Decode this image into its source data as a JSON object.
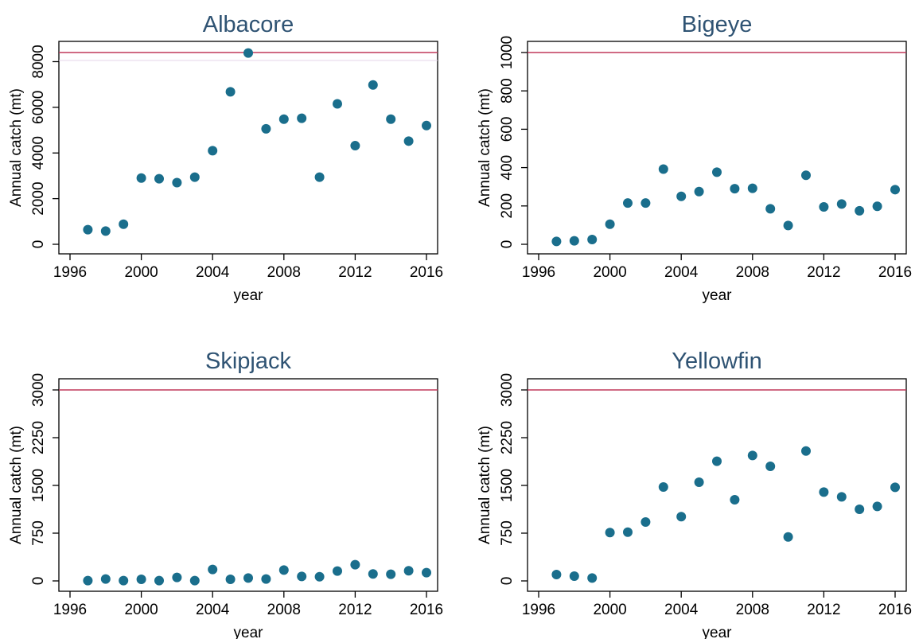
{
  "colors": {
    "marker": "#1a6e8c",
    "reference_line": "#c0395a",
    "title": "#2f5373"
  },
  "chart_data": [
    {
      "type": "scatter",
      "title": "Albacore",
      "xlabel": "year",
      "ylabel": "Annual catch (mt)",
      "xlim": [
        1996,
        2016
      ],
      "ylim": [
        0,
        8400
      ],
      "xticks": [
        1996,
        2000,
        2004,
        2008,
        2012,
        2016
      ],
      "yticks": [
        0,
        2000,
        4000,
        6000,
        8000
      ],
      "reference_line": 8400,
      "grid": false,
      "x": [
        1997,
        1998,
        1999,
        2000,
        2001,
        2002,
        2003,
        2004,
        2005,
        2006,
        2007,
        2008,
        2009,
        2010,
        2011,
        2012,
        2013,
        2014,
        2015,
        2016
      ],
      "y": [
        640,
        580,
        880,
        2900,
        2870,
        2700,
        2940,
        4100,
        6680,
        8380,
        5060,
        5480,
        5520,
        2940,
        6150,
        4320,
        6980,
        5480,
        4520,
        5200
      ]
    },
    {
      "type": "scatter",
      "title": "Bigeye",
      "xlabel": "year",
      "ylabel": "Annual catch (mt)",
      "xlim": [
        1996,
        2016
      ],
      "ylim": [
        0,
        1000
      ],
      "xticks": [
        1996,
        2000,
        2004,
        2008,
        2012,
        2016
      ],
      "yticks": [
        0,
        200,
        400,
        600,
        800,
        1000
      ],
      "reference_line": 1000,
      "grid": false,
      "x": [
        1997,
        1998,
        1999,
        2000,
        2001,
        2002,
        2003,
        2004,
        2005,
        2006,
        2007,
        2008,
        2009,
        2010,
        2011,
        2012,
        2013,
        2014,
        2015,
        2016
      ],
      "y": [
        15,
        18,
        25,
        105,
        215,
        215,
        392,
        250,
        275,
        376,
        290,
        292,
        185,
        98,
        360,
        195,
        210,
        175,
        198,
        285
      ]
    },
    {
      "type": "scatter",
      "title": "Skipjack",
      "xlabel": "year",
      "ylabel": "Annual catch (mt)",
      "xlim": [
        1996,
        2016
      ],
      "ylim": [
        0,
        3000
      ],
      "xticks": [
        1996,
        2000,
        2004,
        2008,
        2012,
        2016
      ],
      "yticks": [
        0,
        750,
        1500,
        2250,
        3000
      ],
      "reference_line": 3000,
      "grid": false,
      "x": [
        1997,
        1998,
        1999,
        2000,
        2001,
        2002,
        2003,
        2004,
        2005,
        2006,
        2007,
        2008,
        2009,
        2010,
        2011,
        2012,
        2013,
        2014,
        2015,
        2016
      ],
      "y": [
        5,
        30,
        5,
        25,
        5,
        55,
        5,
        180,
        25,
        45,
        30,
        170,
        70,
        65,
        155,
        255,
        110,
        105,
        160,
        130
      ]
    },
    {
      "type": "scatter",
      "title": "Yellowfin",
      "xlabel": "year",
      "ylabel": "Annual catch (mt)",
      "xlim": [
        1996,
        2016
      ],
      "ylim": [
        0,
        3000
      ],
      "xticks": [
        1996,
        2000,
        2004,
        2008,
        2012,
        2016
      ],
      "yticks": [
        0,
        750,
        1500,
        2250,
        3000
      ],
      "reference_line": 3000,
      "grid": false,
      "x": [
        1997,
        1998,
        1999,
        2000,
        2001,
        2002,
        2003,
        2004,
        2005,
        2006,
        2007,
        2008,
        2009,
        2010,
        2011,
        2012,
        2013,
        2014,
        2015,
        2016
      ],
      "y": [
        100,
        75,
        45,
        760,
        765,
        925,
        1475,
        1010,
        1550,
        1880,
        1275,
        1970,
        1800,
        690,
        2040,
        1395,
        1320,
        1125,
        1170,
        1470
      ]
    }
  ]
}
